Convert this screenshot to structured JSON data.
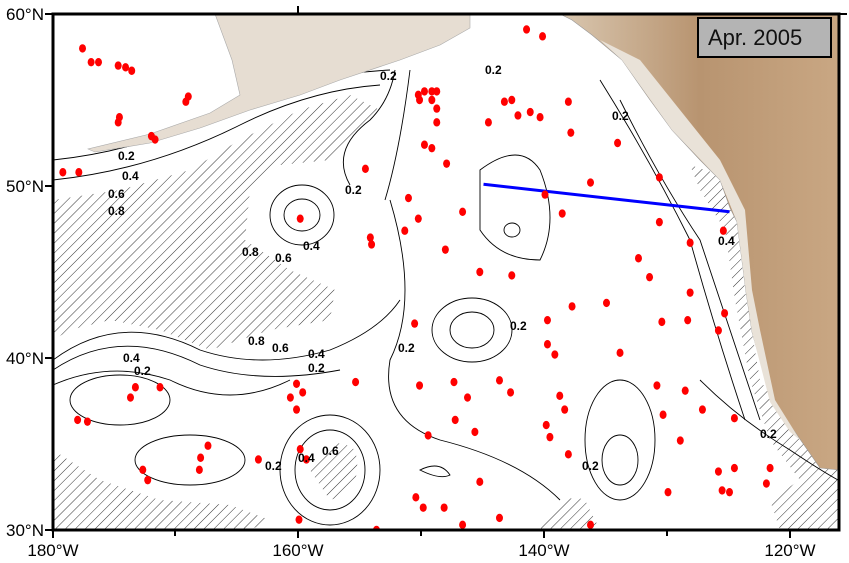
{
  "date_label": "Apr. 2005",
  "axes": {
    "lat_ticks": [
      "60°N",
      "50°N",
      "40°N",
      "30°N"
    ],
    "lon_ticks": [
      "180°W",
      "160°W",
      "140°W",
      "120°W"
    ],
    "lat_range": [
      30,
      60
    ],
    "lon_range": [
      -180,
      -115.5
    ]
  },
  "contour_levels": [
    "0.2",
    "0.4",
    "0.6",
    "0.8"
  ],
  "colors": {
    "float": "#ff0000",
    "section_line": "#0000ff",
    "land_light": "#e8ddd0",
    "land_dark": "#b0895f"
  },
  "section_line": {
    "start": {
      "lon": -145.0,
      "lat": 50.1
    },
    "end": {
      "lon": -125.0,
      "lat": 48.5
    }
  },
  "floats": [
    [
      -177.6,
      58.0
    ],
    [
      -176.9,
      57.2
    ],
    [
      -176.3,
      57.2
    ],
    [
      -174.7,
      57.0
    ],
    [
      -174.1,
      56.9
    ],
    [
      -173.6,
      56.7
    ],
    [
      -169.0,
      55.2
    ],
    [
      -169.2,
      54.9
    ],
    [
      -174.6,
      54.0
    ],
    [
      -174.7,
      53.7
    ],
    [
      -172.0,
      52.9
    ],
    [
      -171.7,
      52.7
    ],
    [
      -179.2,
      50.8
    ],
    [
      -177.9,
      50.8
    ],
    [
      -159.9,
      48.1
    ],
    [
      -154.6,
      51.0
    ],
    [
      -154.2,
      47.0
    ],
    [
      -154.1,
      46.6
    ],
    [
      -150.3,
      55.3
    ],
    [
      -149.8,
      55.5
    ],
    [
      -149.2,
      55.5
    ],
    [
      -148.8,
      55.5
    ],
    [
      -150.2,
      55.0
    ],
    [
      -149.2,
      55.0
    ],
    [
      -148.8,
      54.5
    ],
    [
      -148.8,
      53.7
    ],
    [
      -149.8,
      52.4
    ],
    [
      -149.2,
      52.2
    ],
    [
      -148.0,
      51.3
    ],
    [
      -151.1,
      49.3
    ],
    [
      -150.3,
      48.1
    ],
    [
      -151.4,
      47.4
    ],
    [
      -148.1,
      46.3
    ],
    [
      -146.7,
      48.5
    ],
    [
      -144.6,
      53.7
    ],
    [
      -143.3,
      54.9
    ],
    [
      -142.7,
      55.0
    ],
    [
      -142.2,
      54.1
    ],
    [
      -141.2,
      54.3
    ],
    [
      -140.4,
      54.0
    ],
    [
      -138.1,
      54.9
    ],
    [
      -137.9,
      53.1
    ],
    [
      -140.0,
      49.5
    ],
    [
      -138.6,
      48.4
    ],
    [
      -136.3,
      50.2
    ],
    [
      -134.1,
      52.5
    ],
    [
      -130.7,
      50.5
    ],
    [
      -130.7,
      47.9
    ],
    [
      -132.4,
      45.8
    ],
    [
      -131.5,
      44.7
    ],
    [
      -128.2,
      46.7
    ],
    [
      -128.2,
      43.8
    ],
    [
      -128.4,
      42.2
    ],
    [
      -125.9,
      41.6
    ],
    [
      -125.4,
      42.6
    ],
    [
      -130.5,
      42.1
    ],
    [
      -135.0,
      43.2
    ],
    [
      -137.8,
      43.0
    ],
    [
      -139.8,
      42.2
    ],
    [
      -142.7,
      44.8
    ],
    [
      -145.3,
      45.0
    ],
    [
      -150.6,
      42.0
    ],
    [
      -150.2,
      38.4
    ],
    [
      -147.4,
      38.6
    ],
    [
      -146.3,
      37.7
    ],
    [
      -143.7,
      38.7
    ],
    [
      -142.8,
      38.0
    ],
    [
      -139.8,
      40.8
    ],
    [
      -138.8,
      37.8
    ],
    [
      -138.4,
      37.0
    ],
    [
      -139.9,
      36.1
    ],
    [
      -139.6,
      35.4
    ],
    [
      -138.1,
      34.4
    ],
    [
      -133.9,
      40.3
    ],
    [
      -130.9,
      38.4
    ],
    [
      -128.6,
      38.1
    ],
    [
      -127.2,
      37.0
    ],
    [
      -130.4,
      36.7
    ],
    [
      -129.0,
      35.2
    ],
    [
      -130.0,
      32.2
    ],
    [
      -125.9,
      33.4
    ],
    [
      -125.6,
      32.3
    ],
    [
      -125.0,
      32.2
    ],
    [
      -124.6,
      33.6
    ],
    [
      -121.7,
      33.6
    ],
    [
      -122.0,
      32.7
    ],
    [
      -149.5,
      35.5
    ],
    [
      -147.3,
      36.4
    ],
    [
      -145.7,
      35.7
    ],
    [
      -145.3,
      32.8
    ],
    [
      -150.5,
      31.9
    ],
    [
      -149.9,
      31.3
    ],
    [
      -148.2,
      31.3
    ],
    [
      -146.7,
      30.3
    ],
    [
      -143.7,
      30.7
    ],
    [
      -153.7,
      30.0
    ],
    [
      -160.0,
      30.6
    ],
    [
      -136.3,
      30.3
    ],
    [
      -160.2,
      38.5
    ],
    [
      -159.7,
      38.0
    ],
    [
      -160.7,
      37.7
    ],
    [
      -160.2,
      37.0
    ],
    [
      -155.4,
      38.6
    ],
    [
      -159.9,
      34.7
    ],
    [
      -159.4,
      34.1
    ],
    [
      -163.3,
      34.1
    ],
    [
      -167.4,
      34.9
    ],
    [
      -168.0,
      34.2
    ],
    [
      -168.1,
      33.5
    ],
    [
      -172.7,
      33.5
    ],
    [
      -172.3,
      32.9
    ],
    [
      -178.0,
      36.4
    ],
    [
      -177.2,
      36.3
    ],
    [
      -173.7,
      37.7
    ],
    [
      -173.3,
      38.3
    ],
    [
      -171.3,
      38.3
    ],
    [
      -124.6,
      36.5
    ],
    [
      -125.5,
      47.4
    ],
    [
      -141.5,
      59.1
    ],
    [
      -140.2,
      58.7
    ],
    [
      -139.2,
      40.2
    ]
  ]
}
